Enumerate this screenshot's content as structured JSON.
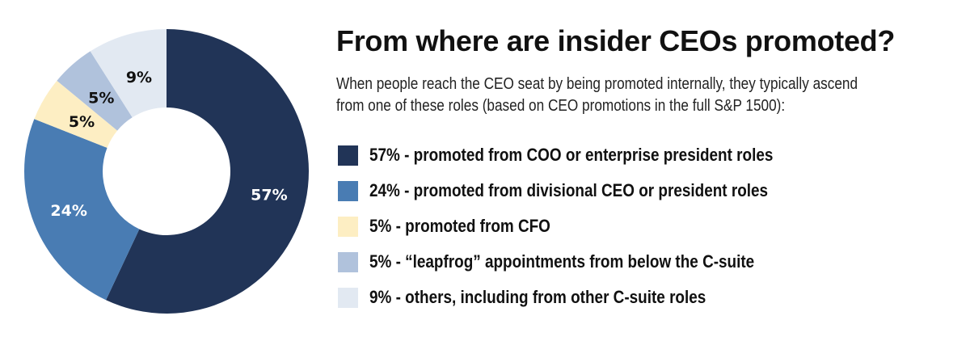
{
  "chart_data": {
    "type": "pie",
    "donut": true,
    "title": "From where are insider CEOs promoted?",
    "subtitle": [
      "When people reach the CEO seat by being promoted internally, they typically ascend",
      "from one of these roles  (based on CEO promotions in the full S&P 1500):"
    ],
    "slices": [
      {
        "value": 57,
        "label": "57%",
        "legend": "57% - promoted from COO or enterprise president roles",
        "color": "#213457",
        "label_color": "#ffffff"
      },
      {
        "value": 24,
        "label": "24%",
        "legend": "24% - promoted from divisional CEO or president roles",
        "color": "#497cb3",
        "label_color": "#ffffff"
      },
      {
        "value": 5,
        "label": "5%",
        "legend": "5% - promoted from CFO",
        "color": "#fdeec3",
        "label_color": "#111111"
      },
      {
        "value": 5,
        "label": "5%",
        "legend": "5% - “leapfrog” appointments from below the C-suite",
        "color": "#b0c2dc",
        "label_color": "#111111"
      },
      {
        "value": 9,
        "label": "9%",
        "legend": "9% - others, including from other C-suite roles",
        "color": "#e2e9f2",
        "label_color": "#111111"
      }
    ],
    "start": "top",
    "direction": "clockwise",
    "legend_position": "right"
  }
}
